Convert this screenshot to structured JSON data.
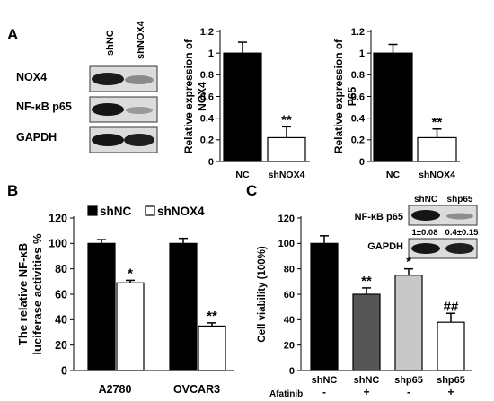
{
  "panel_labels": {
    "a": "A",
    "b": "B",
    "c": "C"
  },
  "blot_a": {
    "lanes": [
      "shNC",
      "shNOX4"
    ],
    "rows": [
      "NOX4",
      "NF-κB p65",
      "GAPDH"
    ]
  },
  "blot_c": {
    "lanes": [
      "shNC",
      "shp65"
    ],
    "rows": [
      "NF-κB p65",
      "GAPDH"
    ],
    "quant": [
      "1±0.08",
      "0.4±0.15"
    ]
  },
  "chart_data": [
    {
      "id": "a-nox4",
      "type": "bar",
      "ylabel": "Relative expression of NOX4",
      "ylabel_lines": [
        "Relative expression of",
        "NOX4"
      ],
      "ylim": [
        0,
        1.2
      ],
      "yticks": [
        "0",
        "0.2",
        "0.4",
        "0.6",
        "0.8",
        "1",
        "1.2"
      ],
      "categories": [
        "NC",
        "shNOX4"
      ],
      "values": [
        1.0,
        0.22
      ],
      "errors": [
        0.1,
        0.1
      ],
      "fills": [
        "#000000",
        "#ffffff"
      ],
      "annotations": [
        "",
        "**"
      ]
    },
    {
      "id": "a-p65",
      "type": "bar",
      "ylabel": "Relative expression of P65",
      "ylabel_lines": [
        "Relative expression of",
        "P65"
      ],
      "ylim": [
        0,
        1.2
      ],
      "yticks": [
        "0",
        "0.2",
        "0.4",
        "0.6",
        "0.8",
        "1",
        "1.2"
      ],
      "categories": [
        "NC",
        "shNOX4"
      ],
      "values": [
        1.0,
        0.22
      ],
      "errors": [
        0.08,
        0.08
      ],
      "fills": [
        "#000000",
        "#ffffff"
      ],
      "annotations": [
        "",
        "**"
      ]
    },
    {
      "id": "b-luciferase",
      "type": "bar",
      "ylabel": "The relative NF-κB luciferase activities %",
      "ylabel_lines": [
        "The relative NF-κB",
        "luciferase activities %"
      ],
      "ylim": [
        0,
        120
      ],
      "yticks": [
        "0",
        "20",
        "40",
        "60",
        "80",
        "100",
        "120"
      ],
      "categories": [
        "A2780",
        "OVCAR3"
      ],
      "series": [
        {
          "name": "shNC",
          "values": [
            100,
            100
          ],
          "errors": [
            3,
            4
          ],
          "fill": "#000000",
          "annotations": [
            "",
            ""
          ]
        },
        {
          "name": "shNOX4",
          "values": [
            69,
            35
          ],
          "errors": [
            2,
            2.5
          ],
          "fill": "#ffffff",
          "annotations": [
            "*",
            "**"
          ]
        }
      ],
      "legend": "top"
    },
    {
      "id": "c-viability",
      "type": "bar",
      "ylabel": "Cell viability (100%)",
      "ylim": [
        0,
        120
      ],
      "yticks": [
        "0",
        "20",
        "40",
        "60",
        "80",
        "100",
        "120"
      ],
      "categories": [
        "shNC",
        "shNC",
        "shp65",
        "shp65"
      ],
      "row2_label": "Afatinib",
      "row2": [
        "-",
        "+",
        "-",
        "+"
      ],
      "values": [
        100,
        60,
        75,
        38
      ],
      "errors": [
        6,
        5,
        5,
        7
      ],
      "fills": [
        "#000000",
        "#555555",
        "#c8c8c8",
        "#ffffff"
      ],
      "annotations": [
        "",
        "**",
        "*",
        "##"
      ]
    }
  ]
}
